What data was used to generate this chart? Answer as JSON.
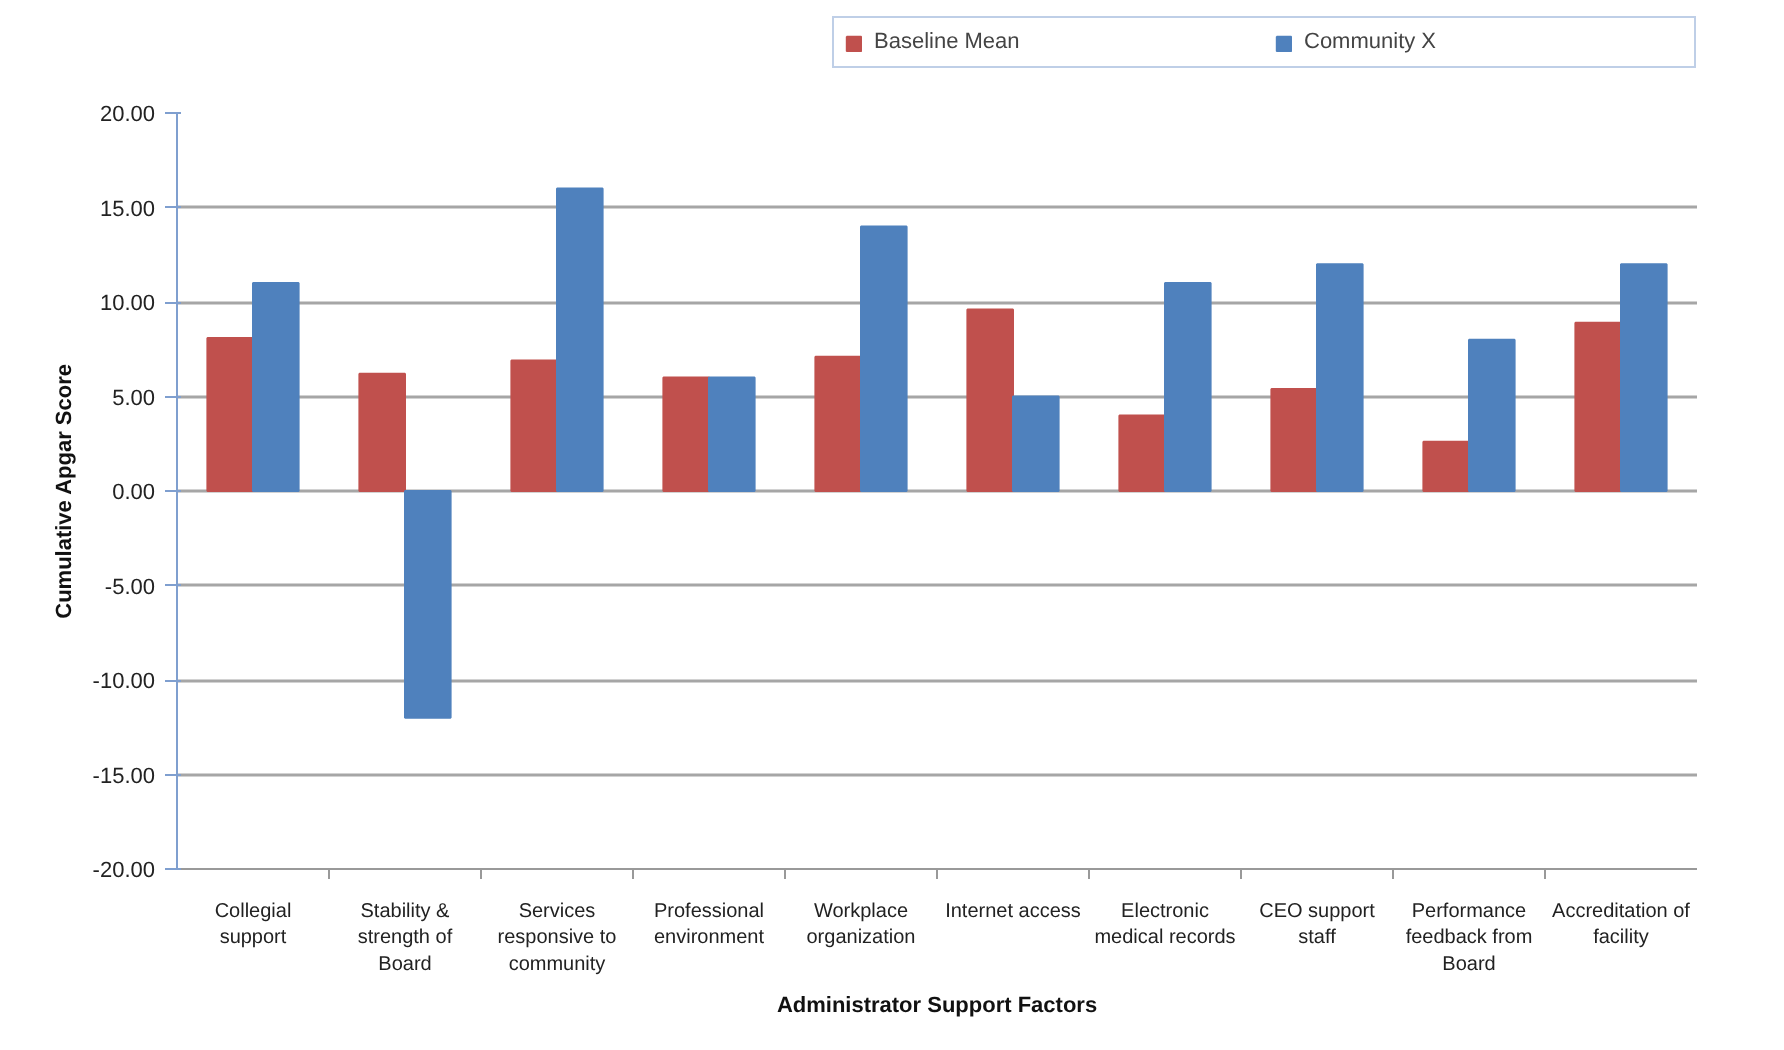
{
  "chart_data": {
    "type": "bar",
    "xlabel": "Administrator Support Factors",
    "ylabel": "Cumulative Apgar Score",
    "categories": [
      "Collegial support",
      "Stability & strength of Board",
      "Services responsive to community",
      "Professional environment",
      "Workplace organization",
      "Internet access",
      "Electronic medical records",
      "CEO support staff",
      "Performance feedback from Board",
      "Accreditation of facility"
    ],
    "series": [
      {
        "name": "Baseline Mean",
        "color": "#c0504d",
        "values": [
          8.1,
          6.2,
          6.9,
          6.0,
          7.1,
          9.6,
          4.0,
          5.4,
          2.6,
          8.9
        ]
      },
      {
        "name": "Community X",
        "color": "#4f81bd",
        "values": [
          11.0,
          -12.0,
          16.0,
          6.0,
          14.0,
          5.0,
          11.0,
          12.0,
          8.0,
          12.0
        ]
      }
    ],
    "ylim": [
      -20,
      20
    ],
    "yticks": [
      {
        "value": -20,
        "label": "-20.00"
      },
      {
        "value": -15,
        "label": "-15.00"
      },
      {
        "value": -10,
        "label": "-10.00"
      },
      {
        "value": -5,
        "label": "-5.00"
      },
      {
        "value": 0,
        "label": "0.00"
      },
      {
        "value": 5,
        "label": "5.00"
      },
      {
        "value": 10,
        "label": "10.00"
      },
      {
        "value": 15,
        "label": "15.00"
      },
      {
        "value": 20,
        "label": "20.00"
      }
    ],
    "grid": "y",
    "legend": "top right"
  }
}
